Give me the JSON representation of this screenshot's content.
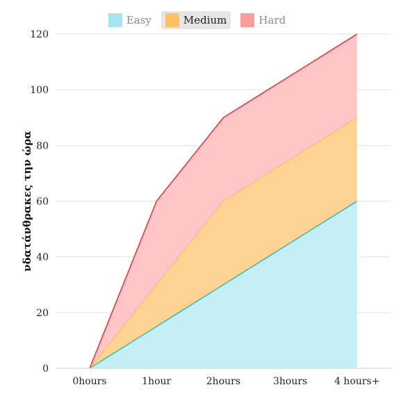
{
  "chart_data": {
    "type": "area",
    "stacked": true,
    "categories": [
      "0hours",
      "1hour",
      "2hours",
      "3hours",
      "4 hours+"
    ],
    "series": [
      {
        "name": "Easy",
        "values": [
          0,
          15,
          30,
          45,
          60
        ],
        "color": "#c6eef5",
        "line": "#2bbfc9",
        "legend": "#a6e5ef"
      },
      {
        "name": "Medium",
        "values": [
          0,
          15,
          30,
          30,
          30
        ],
        "color": "#fdd494",
        "line": "#f6c46a",
        "legend": "#ffc163"
      },
      {
        "name": "Hard",
        "values": [
          0,
          30,
          30,
          30,
          30
        ],
        "color": "#ffc6c8",
        "line": "#e8383b",
        "legend": "#ff9d9d"
      }
    ],
    "ylabel": "νδατάνθρακες την ώρα",
    "xlabel": "",
    "ylim": [
      0,
      120
    ],
    "yticks": [
      0,
      20,
      40,
      60,
      80,
      100,
      120
    ],
    "grid": true,
    "legend_position": "top-center",
    "legend_active": "Medium"
  }
}
